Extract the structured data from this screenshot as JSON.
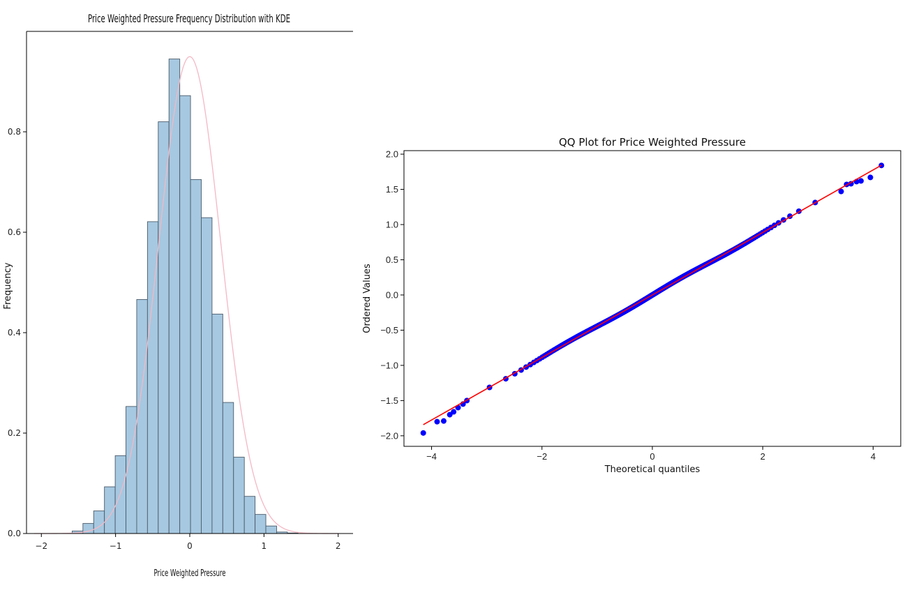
{
  "chart_data": [
    {
      "type": "bar",
      "title": "Price Weighted Pressure Frequency Distribution with KDE",
      "xlabel": "Price Weighted Pressure",
      "ylabel": "Frequency",
      "xlim": [
        -2.2,
        2.2
      ],
      "ylim": [
        0.0,
        1.0
      ],
      "xticks": [
        -2,
        -1,
        0,
        1,
        2
      ],
      "yticks": [
        0.0,
        0.2,
        0.4,
        0.6,
        0.8
      ],
      "bin_edges": [
        -1.585,
        -1.44,
        -1.295,
        -1.15,
        -1.005,
        -0.86,
        -0.715,
        -0.57,
        -0.425,
        -0.28,
        -0.135,
        0.01,
        0.155,
        0.3,
        0.445,
        0.59,
        0.735,
        0.88,
        1.025,
        1.17,
        1.315,
        1.46
      ],
      "values": [
        0.005,
        0.02,
        0.045,
        0.093,
        0.155,
        0.253,
        0.466,
        0.621,
        0.82,
        0.945,
        0.872,
        0.705,
        0.629,
        0.437,
        0.261,
        0.152,
        0.074,
        0.038,
        0.015,
        0.003,
        0.001
      ],
      "bar_color": "#a6c8e0",
      "bar_edge_color": "#4a5a6a",
      "kde": {
        "color": "#f4b8c4",
        "mean": 0.0,
        "std": 0.42,
        "range": [
          -2.1,
          2.0
        ]
      },
      "grid": false,
      "legend": "none"
    },
    {
      "type": "scatter",
      "title": "QQ Plot for Price Weighted Pressure",
      "xlabel": "Theoretical quantiles",
      "ylabel": "Ordered Values",
      "xlim": [
        -4.5,
        4.5
      ],
      "ylim": [
        -2.15,
        2.05
      ],
      "xticks": [
        -4,
        -2,
        0,
        2,
        4
      ],
      "yticks": [
        -2.0,
        -1.5,
        -1.0,
        -0.5,
        0.0,
        0.5,
        1.0,
        1.5,
        2.0
      ],
      "ytick_labels": [
        "−2.0",
        "−1.5",
        "−1.0",
        "−0.5",
        "0.0",
        "0.5",
        "1.0",
        "1.5",
        "2.0"
      ],
      "xtick_labels": [
        "−4",
        "−2",
        "0",
        "2",
        "4"
      ],
      "point_color": "#0000ff",
      "line_color": "#ff0000",
      "fit_line": {
        "slope": 0.444,
        "intercept": 0.0,
        "x_range": [
          -4.15,
          4.15
        ]
      },
      "outlier_points": [
        [
          -4.15,
          -1.96
        ],
        [
          -3.9,
          -1.8
        ],
        [
          -3.78,
          -1.79
        ],
        [
          -3.67,
          -1.7
        ],
        [
          -3.6,
          -1.66
        ],
        [
          -3.52,
          -1.6
        ],
        [
          -3.43,
          -1.55
        ],
        [
          -3.36,
          -1.5
        ],
        [
          3.42,
          1.47
        ],
        [
          3.52,
          1.57
        ],
        [
          3.6,
          1.58
        ],
        [
          3.7,
          1.61
        ],
        [
          3.78,
          1.62
        ],
        [
          3.95,
          1.67
        ],
        [
          4.15,
          1.84
        ]
      ],
      "grid": false,
      "legend": "none"
    }
  ]
}
